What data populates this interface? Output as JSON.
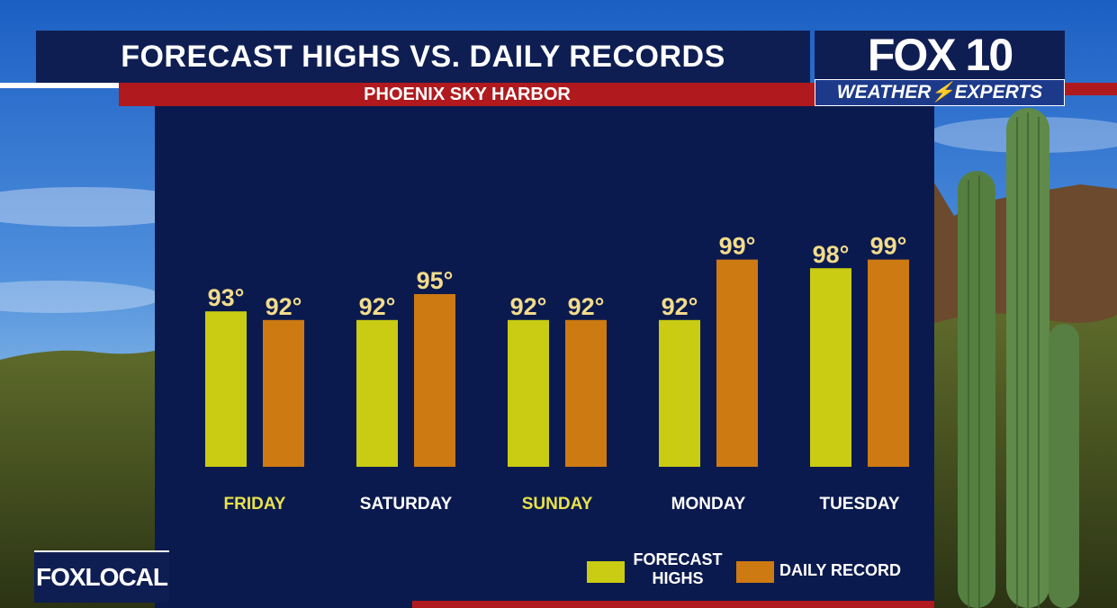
{
  "header": {
    "title": "FORECAST HIGHS VS. DAILY RECORDS",
    "subtitle": "PHOENIX SKY HARBOR"
  },
  "logo": {
    "brand": "FOX 10",
    "tagline": "WEATHER⚡EXPERTS"
  },
  "corner_logo": "FOXLOCAL",
  "colors": {
    "forecast": "#c9cc12",
    "record": "#cd7a12",
    "panel": "#0b1a4e",
    "highlight_day": "#e8e24a",
    "value_label": "#f2dc8c"
  },
  "chart_data": {
    "type": "bar",
    "title": "FORECAST HIGHS VS. DAILY RECORDS",
    "subtitle": "PHOENIX SKY HARBOR",
    "categories": [
      "FRIDAY",
      "SATURDAY",
      "SUNDAY",
      "MONDAY",
      "TUESDAY"
    ],
    "highlighted_categories": [
      "FRIDAY",
      "SUNDAY"
    ],
    "series": [
      {
        "name": "FORECAST HIGHS",
        "values": [
          93,
          92,
          92,
          92,
          98
        ],
        "labels": [
          "93°",
          "92°",
          "92°",
          "92°",
          "98°"
        ]
      },
      {
        "name": "DAILY RECORD",
        "values": [
          92,
          95,
          92,
          99,
          99
        ],
        "labels": [
          "92°",
          "95°",
          "92°",
          "99°",
          "99°"
        ]
      }
    ],
    "unit": "°",
    "legend_position": "bottom-right",
    "grid": false
  },
  "legend": {
    "forecast_line1": "FORECAST",
    "forecast_line2": "HIGHS",
    "record": "DAILY RECORD"
  }
}
